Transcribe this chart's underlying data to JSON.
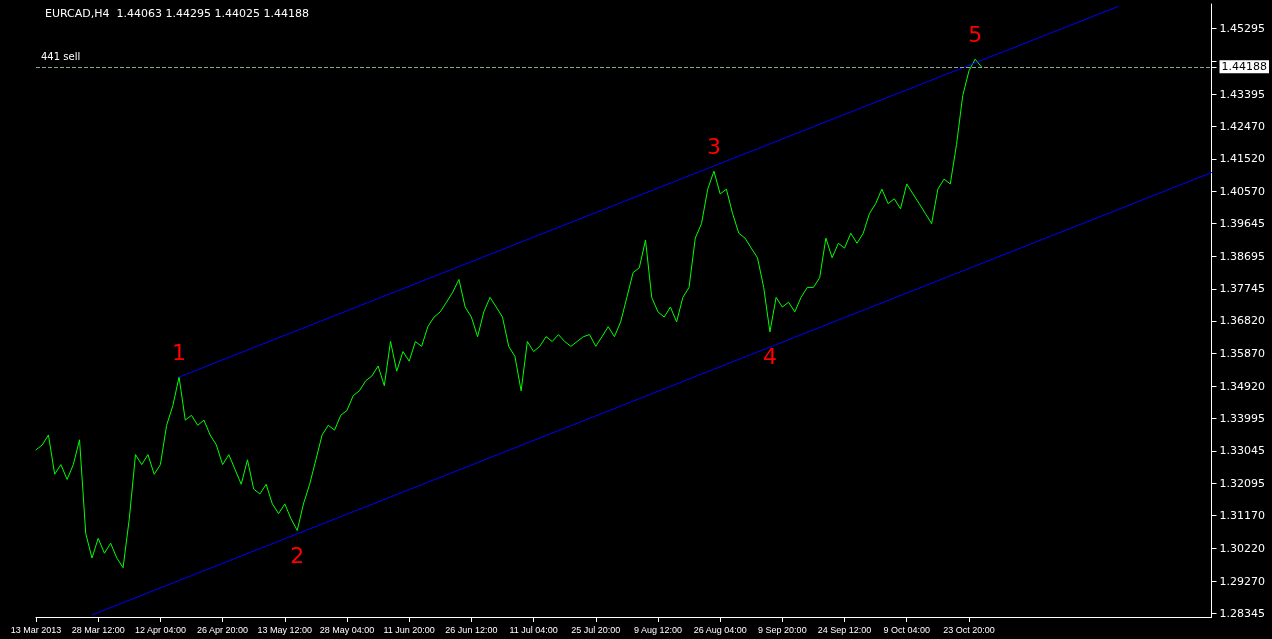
{
  "chart_data": {
    "type": "line",
    "title": "EURCAD,H4  1.44063 1.44295 1.44025 1.44188",
    "categories": [
      "13 Mar 2013",
      null,
      null,
      null,
      null,
      null,
      null,
      null,
      null,
      null,
      "28 Mar 12:00",
      null,
      null,
      null,
      null,
      null,
      null,
      null,
      null,
      null,
      "12 Apr 04:00",
      null,
      null,
      null,
      null,
      null,
      null,
      null,
      null,
      null,
      "26 Apr 20:00",
      null,
      null,
      null,
      null,
      null,
      null,
      null,
      null,
      null,
      "13 May 12:00",
      null,
      null,
      null,
      null,
      null,
      null,
      null,
      null,
      null,
      "28 May 04:00",
      null,
      null,
      null,
      null,
      null,
      null,
      null,
      null,
      null,
      "11 Jun 20:00",
      null,
      null,
      null,
      null,
      null,
      null,
      null,
      null,
      null,
      "26 Jun 12:00",
      null,
      null,
      null,
      null,
      null,
      null,
      null,
      null,
      null,
      "11 Jul 04:00",
      null,
      null,
      null,
      null,
      null,
      null,
      null,
      null,
      null,
      "25 Jul 20:00",
      null,
      null,
      null,
      null,
      null,
      null,
      null,
      null,
      null,
      "9 Aug 12:00",
      null,
      null,
      null,
      null,
      null,
      null,
      null,
      null,
      null,
      "26 Aug 04:00",
      null,
      null,
      null,
      null,
      null,
      null,
      null,
      null,
      null,
      "9 Sep 20:00",
      null,
      null,
      null,
      null,
      null,
      null,
      null,
      null,
      null,
      "24 Sep 12:00",
      null,
      null,
      null,
      null,
      null,
      null,
      null,
      null,
      null,
      "9 Oct 04:00",
      null,
      null,
      null,
      null,
      null,
      null,
      null,
      null,
      null,
      "23 Oct 20:00",
      null,
      null,
      null,
      null,
      null,
      null,
      null,
      null,
      null,
      null,
      null,
      null,
      null,
      null,
      null,
      null,
      null,
      null,
      null,
      null,
      null,
      null,
      null,
      null,
      null,
      null,
      null,
      null,
      null,
      null,
      null,
      null,
      null,
      null,
      null,
      null,
      null,
      null,
      null
    ],
    "series": [
      {
        "color": "#00ff00",
        "values": [
          1.3308,
          1.3322,
          1.3351,
          1.3237,
          1.3265,
          1.3222,
          1.3265,
          1.3337,
          1.3065,
          1.2994,
          1.3051,
          1.3008,
          1.3037,
          1.2994,
          1.2966,
          1.3108,
          1.3294,
          1.3265,
          1.3294,
          1.3237,
          1.3265,
          1.3379,
          1.3436,
          1.3519,
          1.3394,
          1.3408,
          1.3379,
          1.3394,
          1.3351,
          1.3322,
          1.3265,
          1.3294,
          1.3251,
          1.3208,
          1.3279,
          1.3194,
          1.318,
          1.3208,
          1.3151,
          1.3123,
          1.3151,
          1.3108,
          1.3074,
          1.3151,
          1.3208,
          1.3279,
          1.3351,
          1.3379,
          1.3365,
          1.3408,
          1.3422,
          1.3465,
          1.3479,
          1.3508,
          1.3522,
          1.3551,
          1.3494,
          1.3622,
          1.3536,
          1.3593,
          1.3565,
          1.3622,
          1.3608,
          1.3665,
          1.3693,
          1.3708,
          1.3736,
          1.3765,
          1.3802,
          1.3722,
          1.3693,
          1.3636,
          1.3708,
          1.375,
          1.3722,
          1.3693,
          1.3608,
          1.3579,
          1.3479,
          1.3622,
          1.3593,
          1.3608,
          1.3636,
          1.3622,
          1.3642,
          1.3622,
          1.3608,
          1.3622,
          1.3636,
          1.3642,
          1.3608,
          1.3636,
          1.3665,
          1.3636,
          1.3679,
          1.375,
          1.3822,
          1.3836,
          1.3916,
          1.375,
          1.3708,
          1.3693,
          1.3722,
          1.3679,
          1.375,
          1.3779,
          1.3922,
          1.3964,
          1.4064,
          1.4116,
          1.405,
          1.4064,
          1.3993,
          1.3936,
          1.3922,
          1.3893,
          1.3865,
          1.3779,
          1.365,
          1.375,
          1.3722,
          1.3736,
          1.3708,
          1.375,
          1.3779,
          1.3779,
          1.3807,
          1.3922,
          1.3865,
          1.3907,
          1.3893,
          1.3936,
          1.3907,
          1.3936,
          1.3993,
          1.4022,
          1.4064,
          1.4022,
          1.4036,
          1.4007,
          1.4079,
          1.405,
          1.4022,
          1.3993,
          1.3964,
          1.4064,
          1.4093,
          1.4079,
          1.4193,
          1.4335,
          1.4407,
          1.4441,
          1.44188,
          null,
          null,
          null,
          null,
          null,
          null,
          null,
          null,
          null,
          null,
          null,
          null,
          null,
          null,
          null,
          null,
          null,
          null,
          null,
          null,
          null,
          null,
          null,
          null,
          null,
          null,
          null,
          null,
          null,
          null,
          null,
          null,
          null,
          null,
          null,
          null,
          null
        ]
      },
      {
        "color": "#0000ff",
        "values": [
          null,
          null,
          null,
          null,
          null,
          null,
          null,
          null,
          null,
          null,
          null,
          null,
          null,
          null,
          null,
          null,
          null,
          null,
          null,
          null,
          null,
          null,
          null,
          1.3519,
          null,
          null,
          null,
          null,
          null,
          null,
          null,
          null,
          null,
          null,
          null,
          null,
          null,
          null,
          null,
          null,
          null,
          null,
          null,
          null,
          null,
          null,
          null,
          null,
          null,
          null,
          null,
          null,
          null,
          null,
          null,
          null,
          null,
          null,
          null,
          null,
          null,
          null,
          null,
          null,
          null,
          null,
          null,
          null,
          null,
          null,
          null,
          null,
          null,
          null,
          null,
          null,
          null,
          null,
          null,
          null,
          null,
          null,
          null,
          null,
          null,
          null,
          null,
          null,
          null,
          null,
          null,
          null,
          null,
          null,
          null,
          null,
          null,
          null,
          null,
          null,
          null,
          null,
          null,
          null,
          null,
          null,
          null,
          null,
          null,
          null,
          null,
          null,
          null,
          null,
          null,
          null,
          null,
          null,
          null,
          null,
          null,
          null,
          null,
          null,
          null,
          null,
          null,
          null,
          null,
          null,
          null,
          null,
          null,
          null,
          null,
          null,
          null,
          null,
          null,
          null,
          null,
          null,
          null,
          null,
          null,
          null,
          null,
          null,
          null,
          null,
          null,
          null,
          null,
          null,
          null,
          null,
          null,
          null,
          null,
          null,
          null,
          null,
          null,
          null,
          null,
          null,
          null,
          null,
          null,
          null,
          null,
          null,
          null,
          null,
          1.4594,
          null,
          null,
          null,
          null,
          null,
          null,
          null,
          null,
          null,
          null,
          null,
          null,
          null,
          null,
          null
        ]
      },
      {
        "color": "#0000ff",
        "values": [
          null,
          null,
          null,
          null,
          null,
          null,
          null,
          null,
          null,
          1.2829,
          null,
          null,
          null,
          null,
          null,
          null,
          null,
          null,
          null,
          null,
          null,
          null,
          null,
          null,
          null,
          null,
          null,
          null,
          null,
          null,
          null,
          null,
          null,
          null,
          null,
          null,
          null,
          null,
          null,
          null,
          null,
          null,
          null,
          null,
          null,
          null,
          null,
          null,
          null,
          null,
          null,
          null,
          null,
          null,
          null,
          null,
          null,
          null,
          null,
          null,
          null,
          null,
          null,
          null,
          null,
          null,
          null,
          null,
          null,
          null,
          null,
          null,
          null,
          null,
          null,
          null,
          null,
          null,
          null,
          null,
          null,
          null,
          null,
          null,
          null,
          null,
          null,
          null,
          null,
          null,
          null,
          null,
          null,
          null,
          null,
          null,
          null,
          null,
          null,
          null,
          null,
          null,
          null,
          null,
          null,
          null,
          null,
          null,
          null,
          null,
          null,
          null,
          null,
          null,
          null,
          null,
          null,
          null,
          null,
          null,
          null,
          null,
          null,
          null,
          null,
          null,
          null,
          null,
          null,
          null,
          null,
          null,
          null,
          null,
          null,
          null,
          null,
          null,
          null,
          null,
          null,
          null,
          null,
          null,
          null,
          null,
          null,
          null,
          null,
          null,
          null,
          null,
          null,
          null,
          null,
          null,
          null,
          null,
          null,
          null,
          null,
          null,
          null,
          null,
          null,
          null,
          null,
          null,
          null,
          null,
          null,
          null,
          null,
          null,
          null,
          null,
          null,
          null,
          null,
          null,
          null,
          null,
          null,
          null,
          null,
          null,
          null,
          null,
          null,
          1.4112
        ]
      }
    ],
    "ylim": [
      1.2823,
      1.4601
    ],
    "yticks": [
      1.45295,
      {
        "value": 1.44345,
        "label": null
      },
      1.44188,
      1.43395,
      {
        "value": 1.4247,
        "label": "1.42470"
      },
      {
        "value": 1.4152,
        "label": "1.41520"
      },
      {
        "value": 1.4057,
        "label": "1.40570"
      },
      1.39645,
      1.38695,
      1.37745,
      {
        "value": 1.3682,
        "label": "1.36820"
      },
      {
        "value": 1.3587,
        "label": "1.35870"
      },
      {
        "value": 1.3492,
        "label": "1.34920"
      },
      1.33995,
      1.33045,
      1.32095,
      {
        "value": 1.3117,
        "label": "1.31170"
      },
      {
        "value": 1.3022,
        "label": "1.30220"
      },
      {
        "value": 1.2927,
        "label": "1.29270"
      },
      1.28345
    ],
    "annotations": [
      {
        "text": "1",
        "y": 1.3519
      },
      {
        "text": "2",
        "y": 1.3074
      },
      {
        "text": "3",
        "y": 1.4116
      },
      {
        "text": "4",
        "y": 1.365
      },
      {
        "text": "5",
        "y": 1.4441
      }
    ],
    "ref_lines": [
      {
        "axis": "y",
        "value": 1.44188,
        "label": "441 sell",
        "color": "#8fa88f",
        "line_style": "dashed"
      }
    ],
    "grid": false,
    "marker": "none",
    "line_style": "solid"
  }
}
